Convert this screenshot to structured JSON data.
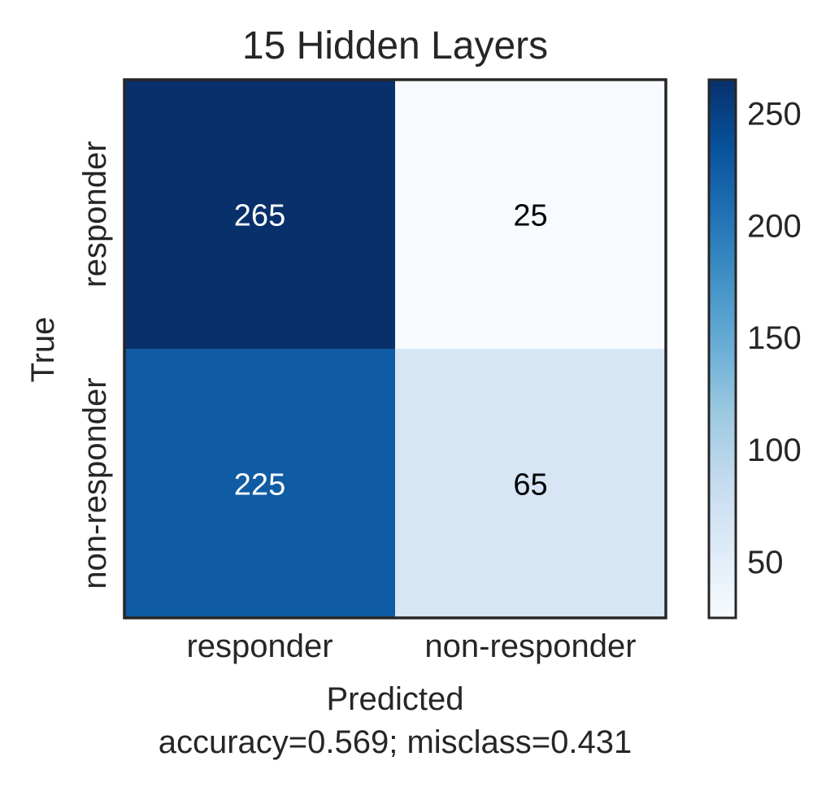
{
  "chart_data": {
    "type": "heatmap",
    "title": "15 Hidden Layers",
    "xlabel": "Predicted",
    "xlabel_sub": "accuracy=0.569; misclass=0.431",
    "ylabel": "True",
    "x_categories": [
      "responder",
      "non-responder"
    ],
    "y_categories": [
      "responder",
      "non-responder"
    ],
    "matrix": [
      [
        265,
        25
      ],
      [
        225,
        65
      ]
    ],
    "colormap": "Blues",
    "colorbar": {
      "range": [
        25,
        265
      ],
      "ticks": [
        50,
        100,
        150,
        200,
        250
      ]
    },
    "colors": {
      "text_light": "#ffffff",
      "text_dark": "#000000",
      "frame": "#262626"
    }
  }
}
